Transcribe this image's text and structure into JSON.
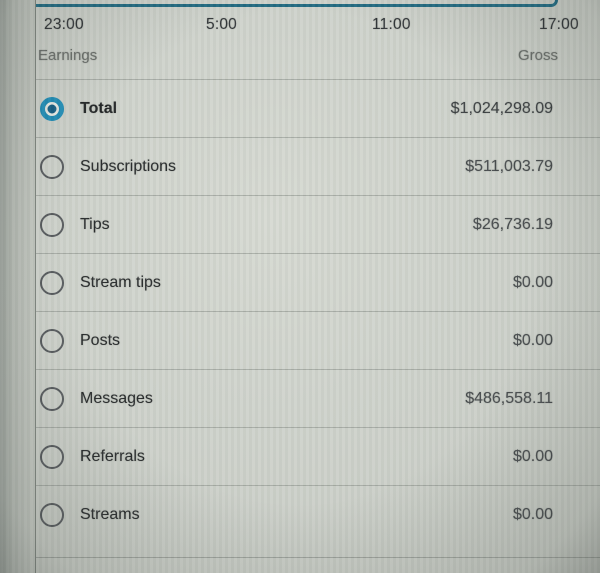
{
  "colors": {
    "accent_blue": "#1d8cb6",
    "radio_center": "#135d83",
    "radio_gray": "#55595c",
    "chart_line": "#1e6880",
    "text_dark": "#26292a",
    "text_gray": "#696d69",
    "amount_gray": "#45494b"
  },
  "chart": {
    "x_ticks": [
      "23:00",
      "5:00",
      "11:00",
      "17:00"
    ]
  },
  "section": {
    "left_header": "Earnings",
    "right_header": "Gross"
  },
  "rows": [
    {
      "label": "Total",
      "amount": "$1,024,298.09",
      "selected": true
    },
    {
      "label": "Subscriptions",
      "amount": "$511,003.79",
      "selected": false
    },
    {
      "label": "Tips",
      "amount": "$26,736.19",
      "selected": false
    },
    {
      "label": "Stream tips",
      "amount": "$0.00",
      "selected": false
    },
    {
      "label": "Posts",
      "amount": "$0.00",
      "selected": false
    },
    {
      "label": "Messages",
      "amount": "$486,558.11",
      "selected": false
    },
    {
      "label": "Referrals",
      "amount": "$0.00",
      "selected": false
    },
    {
      "label": "Streams",
      "amount": "$0.00",
      "selected": false
    }
  ]
}
